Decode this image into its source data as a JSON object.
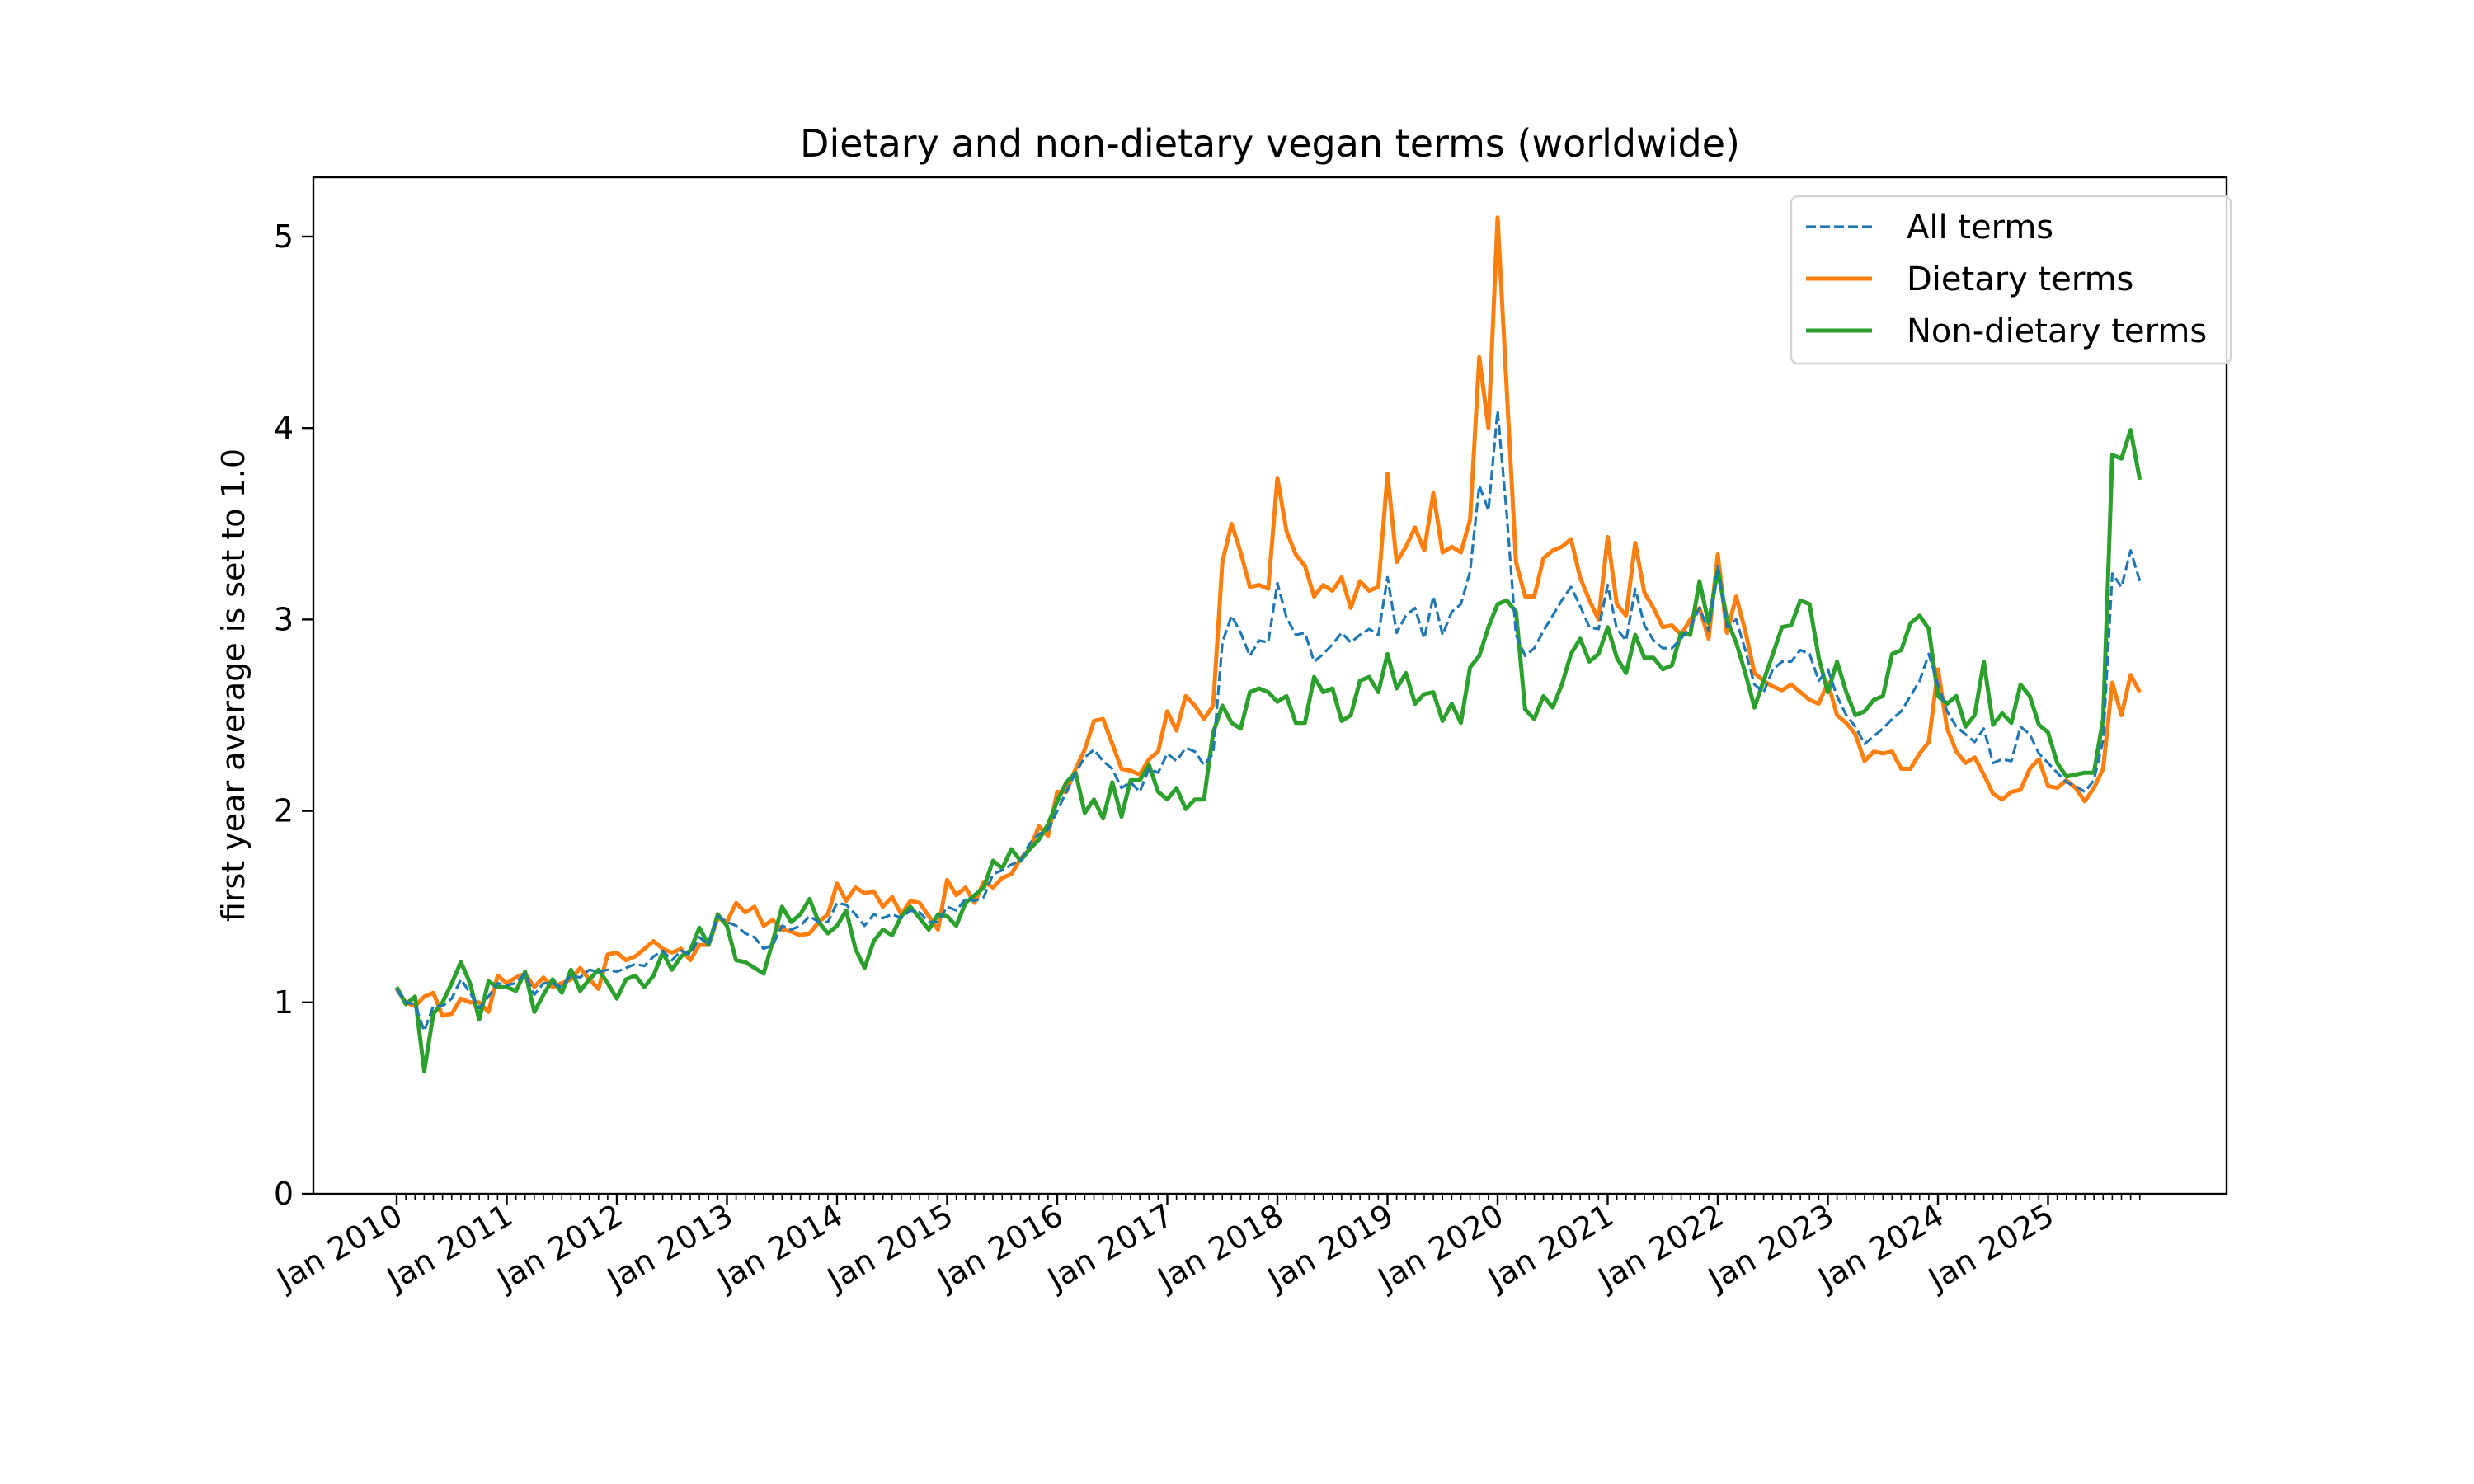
{
  "chart_data": {
    "type": "line",
    "title": "Dietary and non-dietary vegan terms (worldwide)",
    "xlabel": "",
    "ylabel": "first year average is set to 1.0",
    "ylim": [
      0,
      5.31
    ],
    "yticks": [
      0,
      1,
      2,
      3,
      4,
      5
    ],
    "x_start": "2010-01",
    "x_frequency": "monthly",
    "x_range": [
      "2009-03",
      "2026-05"
    ],
    "xtick_labels": [
      "Jan 2010",
      "Jan 2011",
      "Jan 2012",
      "Jan 2013",
      "Jan 2014",
      "Jan 2015",
      "Jan 2016",
      "Jan 2017",
      "Jan 2018",
      "Jan 2019",
      "Jan 2020",
      "Jan 2021",
      "Jan 2022",
      "Jan 2023",
      "Jan 2024",
      "Jan 2025"
    ],
    "grid": false,
    "legend": {
      "placement": "top-right",
      "entries": [
        "All terms",
        "Dietary terms",
        "Non-dietary terms"
      ]
    },
    "series": [
      {
        "name": "All terms",
        "color": "#1f77b4",
        "style": "dashed",
        "values": [
          1.07,
          1.0,
          0.99,
          0.85,
          0.98,
          0.98,
          1.02,
          1.12,
          1.05,
          0.97,
          1.03,
          1.1,
          1.09,
          1.1,
          1.15,
          1.04,
          1.1,
          1.1,
          1.08,
          1.14,
          1.13,
          1.17,
          1.16,
          1.17,
          1.16,
          1.18,
          1.2,
          1.19,
          1.24,
          1.27,
          1.22,
          1.27,
          1.25,
          1.34,
          1.3,
          1.45,
          1.42,
          1.4,
          1.36,
          1.34,
          1.28,
          1.3,
          1.4,
          1.38,
          1.4,
          1.45,
          1.42,
          1.42,
          1.52,
          1.51,
          1.46,
          1.4,
          1.46,
          1.44,
          1.46,
          1.44,
          1.48,
          1.47,
          1.42,
          1.42,
          1.5,
          1.48,
          1.54,
          1.53,
          1.55,
          1.67,
          1.69,
          1.72,
          1.74,
          1.83,
          1.88,
          1.9,
          2.0,
          2.1,
          2.2,
          2.28,
          2.32,
          2.26,
          2.22,
          2.12,
          2.15,
          2.1,
          2.22,
          2.2,
          2.3,
          2.26,
          2.33,
          2.31,
          2.24,
          2.3,
          2.88,
          3.02,
          2.93,
          2.81,
          2.89,
          2.88,
          3.19,
          3.01,
          2.92,
          2.93,
          2.78,
          2.82,
          2.87,
          2.93,
          2.88,
          2.92,
          2.95,
          2.92,
          3.22,
          2.93,
          3.02,
          3.06,
          2.9,
          3.12,
          2.92,
          3.04,
          3.08,
          3.25,
          3.7,
          3.57,
          4.09,
          3.55,
          2.92,
          2.81,
          2.85,
          2.94,
          3.02,
          3.1,
          3.17,
          3.07,
          2.96,
          2.95,
          3.18,
          2.95,
          2.89,
          3.16,
          2.97,
          2.89,
          2.85,
          2.85,
          2.9,
          2.96,
          3.06,
          2.94,
          3.28,
          2.96,
          3.0,
          2.84,
          2.66,
          2.62,
          2.74,
          2.78,
          2.78,
          2.84,
          2.82,
          2.68,
          2.74,
          2.6,
          2.5,
          2.44,
          2.35,
          2.39,
          2.43,
          2.48,
          2.52,
          2.6,
          2.68,
          2.82,
          2.66,
          2.52,
          2.44,
          2.4,
          2.36,
          2.43,
          2.25,
          2.27,
          2.26,
          2.44,
          2.4,
          2.3,
          2.25,
          2.2,
          2.15,
          2.13,
          2.1,
          2.16,
          2.37,
          3.24,
          3.17,
          3.36,
          3.2
        ]
      },
      {
        "name": "Dietary terms",
        "color": "#ff7f0e",
        "style": "solid",
        "values": [
          1.07,
          1.0,
          0.98,
          1.03,
          1.05,
          0.93,
          0.94,
          1.02,
          1.0,
          1.0,
          0.95,
          1.14,
          1.1,
          1.13,
          1.15,
          1.08,
          1.13,
          1.08,
          1.1,
          1.12,
          1.18,
          1.12,
          1.07,
          1.25,
          1.26,
          1.22,
          1.24,
          1.28,
          1.32,
          1.28,
          1.26,
          1.28,
          1.22,
          1.3,
          1.3,
          1.44,
          1.42,
          1.52,
          1.47,
          1.5,
          1.4,
          1.43,
          1.38,
          1.37,
          1.35,
          1.36,
          1.42,
          1.46,
          1.62,
          1.53,
          1.6,
          1.57,
          1.58,
          1.5,
          1.55,
          1.46,
          1.53,
          1.52,
          1.45,
          1.38,
          1.64,
          1.56,
          1.6,
          1.52,
          1.63,
          1.6,
          1.65,
          1.67,
          1.75,
          1.8,
          1.92,
          1.87,
          2.1,
          2.1,
          2.22,
          2.32,
          2.47,
          2.48,
          2.35,
          2.22,
          2.21,
          2.19,
          2.27,
          2.31,
          2.52,
          2.42,
          2.6,
          2.55,
          2.48,
          2.55,
          3.3,
          3.5,
          3.35,
          3.17,
          3.18,
          3.16,
          3.74,
          3.46,
          3.34,
          3.28,
          3.12,
          3.18,
          3.15,
          3.22,
          3.06,
          3.2,
          3.15,
          3.17,
          3.76,
          3.3,
          3.38,
          3.48,
          3.36,
          3.66,
          3.35,
          3.38,
          3.35,
          3.52,
          4.37,
          4.0,
          5.1,
          4.2,
          3.3,
          3.12,
          3.12,
          3.32,
          3.36,
          3.38,
          3.42,
          3.22,
          3.1,
          3.0,
          3.43,
          3.08,
          3.02,
          3.4,
          3.14,
          3.06,
          2.96,
          2.97,
          2.92,
          3.0,
          3.06,
          2.9,
          3.34,
          2.93,
          3.12,
          2.94,
          2.72,
          2.68,
          2.65,
          2.63,
          2.66,
          2.62,
          2.58,
          2.56,
          2.67,
          2.5,
          2.46,
          2.4,
          2.26,
          2.31,
          2.3,
          2.31,
          2.22,
          2.22,
          2.3,
          2.36,
          2.74,
          2.43,
          2.31,
          2.25,
          2.28,
          2.19,
          2.09,
          2.06,
          2.1,
          2.11,
          2.22,
          2.27,
          2.13,
          2.12,
          2.16,
          2.12,
          2.05,
          2.12,
          2.22,
          2.67,
          2.5,
          2.71,
          2.62
        ]
      },
      {
        "name": "Non-dietary terms",
        "color": "#2ca02c",
        "style": "solid",
        "values": [
          1.08,
          0.99,
          1.03,
          0.64,
          0.94,
          1.0,
          1.1,
          1.21,
          1.1,
          0.91,
          1.11,
          1.08,
          1.08,
          1.06,
          1.16,
          0.95,
          1.04,
          1.12,
          1.05,
          1.17,
          1.06,
          1.12,
          1.17,
          1.1,
          1.02,
          1.12,
          1.14,
          1.08,
          1.14,
          1.26,
          1.17,
          1.24,
          1.27,
          1.39,
          1.3,
          1.46,
          1.4,
          1.22,
          1.21,
          1.18,
          1.15,
          1.32,
          1.5,
          1.42,
          1.46,
          1.54,
          1.42,
          1.36,
          1.4,
          1.48,
          1.28,
          1.18,
          1.32,
          1.38,
          1.35,
          1.45,
          1.5,
          1.44,
          1.38,
          1.46,
          1.45,
          1.4,
          1.52,
          1.56,
          1.6,
          1.74,
          1.7,
          1.8,
          1.74,
          1.8,
          1.85,
          1.93,
          2.05,
          2.15,
          2.2,
          1.99,
          2.06,
          1.96,
          2.15,
          1.97,
          2.16,
          2.16,
          2.24,
          2.1,
          2.06,
          2.12,
          2.01,
          2.06,
          2.06,
          2.41,
          2.55,
          2.46,
          2.43,
          2.62,
          2.64,
          2.62,
          2.57,
          2.6,
          2.46,
          2.46,
          2.7,
          2.62,
          2.64,
          2.47,
          2.5,
          2.68,
          2.7,
          2.62,
          2.82,
          2.64,
          2.72,
          2.56,
          2.61,
          2.62,
          2.47,
          2.56,
          2.46,
          2.75,
          2.81,
          2.96,
          3.08,
          3.1,
          3.04,
          2.53,
          2.48,
          2.6,
          2.54,
          2.66,
          2.82,
          2.9,
          2.78,
          2.82,
          2.96,
          2.8,
          2.72,
          2.92,
          2.8,
          2.8,
          2.74,
          2.76,
          2.93,
          2.92,
          3.2,
          2.98,
          3.26,
          3.0,
          2.88,
          2.72,
          2.54,
          2.68,
          2.82,
          2.96,
          2.97,
          3.1,
          3.08,
          2.8,
          2.62,
          2.78,
          2.62,
          2.5,
          2.52,
          2.58,
          2.6,
          2.82,
          2.84,
          2.98,
          3.02,
          2.95,
          2.6,
          2.56,
          2.6,
          2.44,
          2.5,
          2.78,
          2.45,
          2.51,
          2.46,
          2.66,
          2.6,
          2.45,
          2.41,
          2.25,
          2.18,
          2.19,
          2.2,
          2.2,
          2.48,
          3.86,
          3.84,
          3.99,
          3.73
        ]
      }
    ]
  }
}
